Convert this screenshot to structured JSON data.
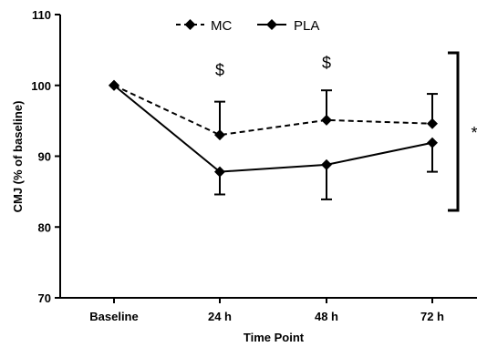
{
  "chart_data": {
    "type": "line",
    "xlabel": "Time Point",
    "ylabel": "CMJ (% of baseline)",
    "categories": [
      "Baseline",
      "24 h",
      "48 h",
      "72 h"
    ],
    "ylim": [
      70,
      110
    ],
    "yticks": [
      70,
      80,
      90,
      100,
      110
    ],
    "grid": false,
    "legend_position": "top",
    "series": [
      {
        "name": "MC",
        "style": "dashed",
        "color": "#000000",
        "marker": "diamond",
        "values": [
          100,
          93.0,
          95.1,
          94.6
        ],
        "error_up": [
          0,
          4.7,
          4.2,
          4.2
        ],
        "error_down": [
          0,
          0,
          0,
          0
        ]
      },
      {
        "name": "PLA",
        "style": "solid",
        "color": "#000000",
        "marker": "diamond",
        "values": [
          100,
          87.8,
          88.8,
          91.9
        ],
        "error_up": [
          0,
          0,
          0,
          0
        ],
        "error_down": [
          0,
          3.2,
          4.9,
          4.1
        ]
      }
    ],
    "annotations": [
      {
        "text": "$",
        "category": "24 h"
      },
      {
        "text": "$",
        "category": "48 h"
      },
      {
        "text": "*",
        "type": "bracket"
      }
    ]
  }
}
